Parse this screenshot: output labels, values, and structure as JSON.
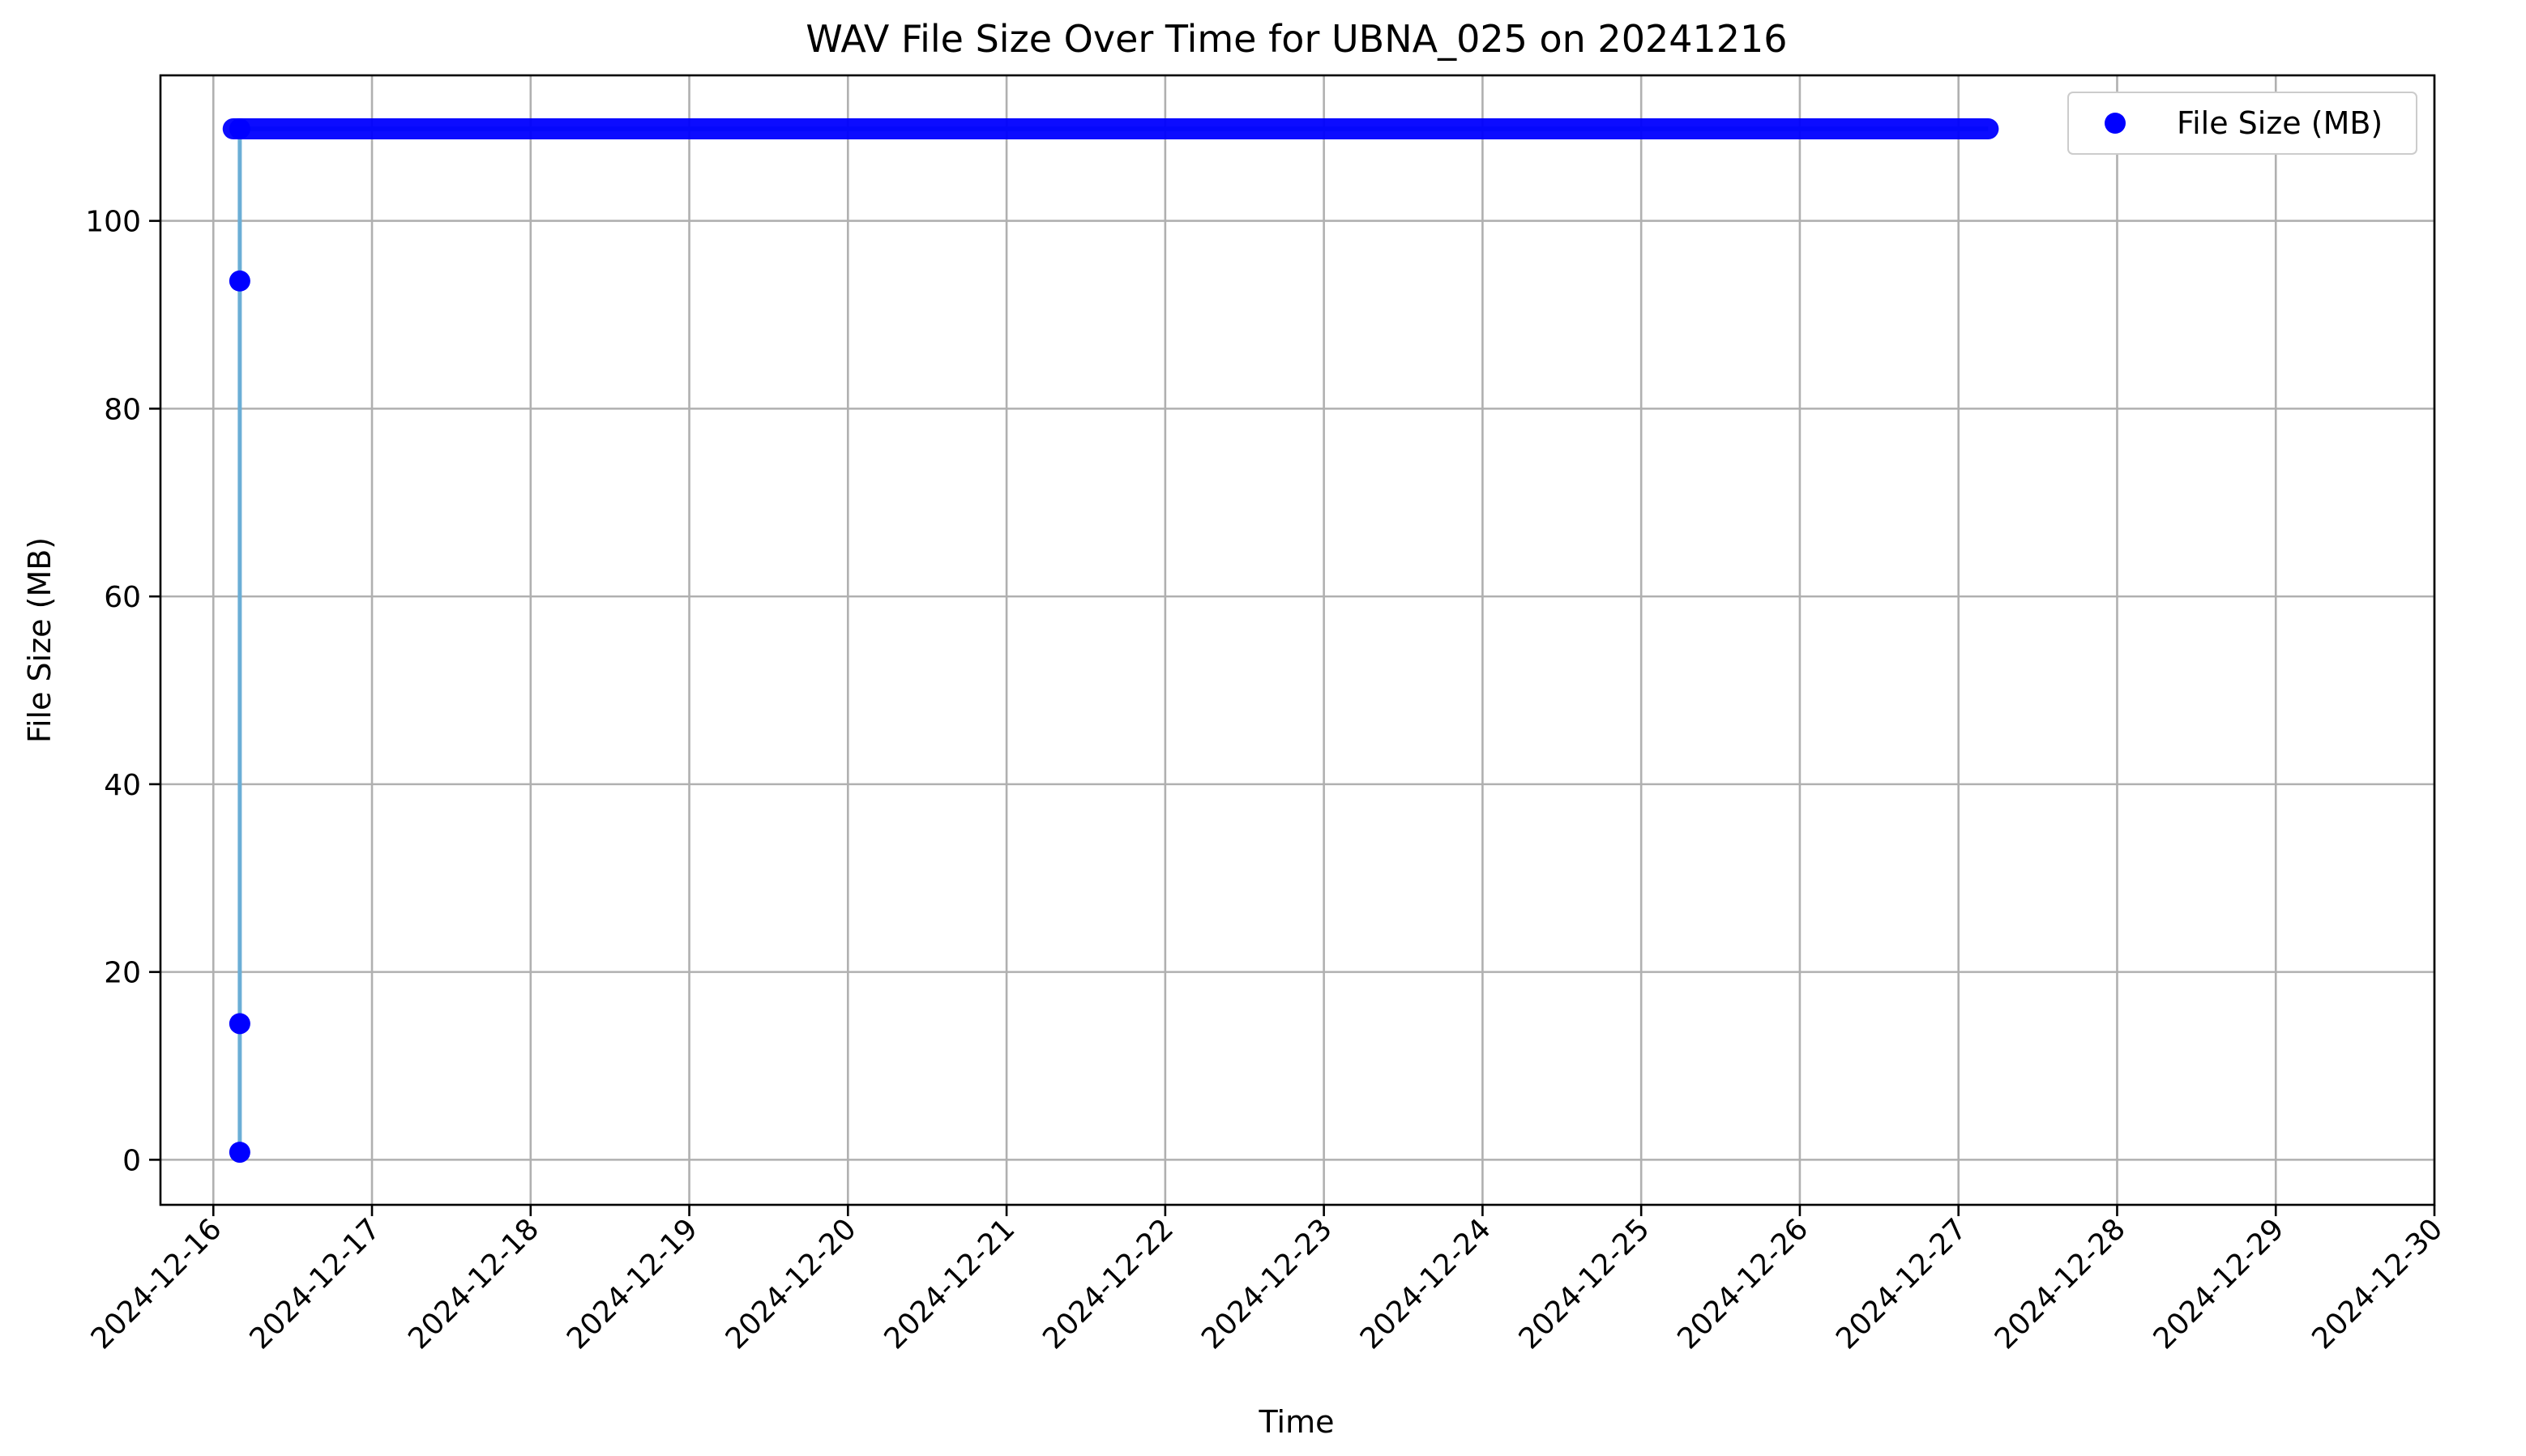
{
  "chart_data": {
    "type": "scatter",
    "title": "WAV File Size Over Time for UBNA_025 on 20241216",
    "xlabel": "Time",
    "ylabel": "File Size (MB)",
    "x_axis_type": "date",
    "xlim": [
      "2024-12-15 16:00",
      "2024-12-30 00:00"
    ],
    "ylim": [
      -4.8,
      115.5
    ],
    "x_ticks": [
      "2024-12-16",
      "2024-12-17",
      "2024-12-18",
      "2024-12-19",
      "2024-12-20",
      "2024-12-21",
      "2024-12-22",
      "2024-12-23",
      "2024-12-24",
      "2024-12-25",
      "2024-12-26",
      "2024-12-27",
      "2024-12-28",
      "2024-12-29",
      "2024-12-30"
    ],
    "y_ticks": [
      0,
      20,
      40,
      60,
      80,
      100
    ],
    "grid": true,
    "legend": {
      "position": "top-right",
      "entries": [
        "File Size (MB)"
      ]
    },
    "series": [
      {
        "name": "File Size (MB)",
        "marker_color": "#0000ff",
        "line_color": "#6baed6",
        "points": [
          {
            "x": "2024-12-16 04:00",
            "y": 0.8
          },
          {
            "x": "2024-12-16 04:00",
            "y": 14.5
          },
          {
            "x": "2024-12-16 04:00",
            "y": 93.6
          },
          {
            "x": "2024-12-16 04:00",
            "y": 109.8
          }
        ],
        "continuous_range": {
          "start": "2024-12-16 03:00",
          "end": "2024-12-27 04:30",
          "y": 109.8
        }
      }
    ]
  }
}
